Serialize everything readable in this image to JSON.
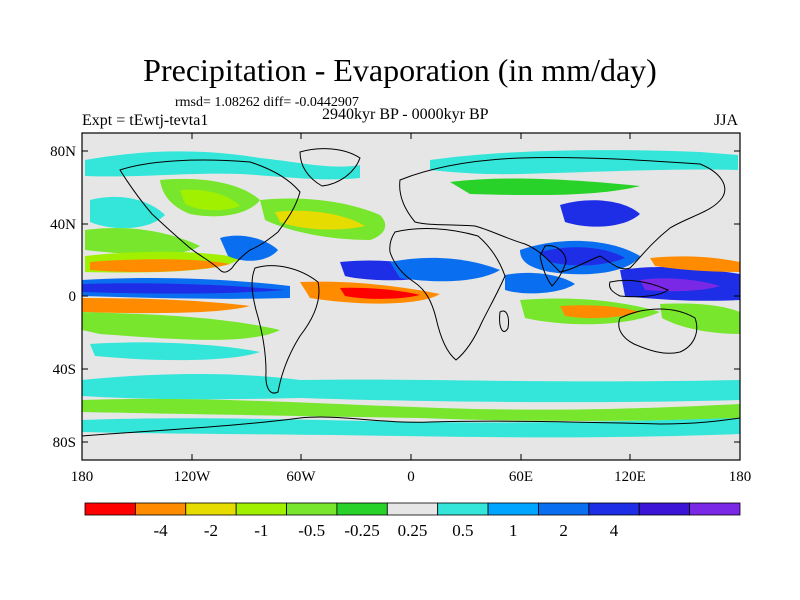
{
  "title": "Precipitation - Evaporation (in mm/day)",
  "stats": "rmsd= 1.08262 diff= -0.0442907",
  "experiment": "Expt = tEwtj-tevta1",
  "period": "2940kyr BP - 0000kyr BP",
  "season": "JJA",
  "y_ticks": [
    "80N",
    "40N",
    "0",
    "40S",
    "80S"
  ],
  "x_ticks": [
    "180",
    "120W",
    "60W",
    "0",
    "60E",
    "120E",
    "180"
  ],
  "colorbar": {
    "colors": [
      "#ff0000",
      "#ff8c00",
      "#e6dc00",
      "#a0f000",
      "#78e62d",
      "#28d228",
      "#e6e6e6",
      "#33e6d9",
      "#00a5ff",
      "#0a6ef0",
      "#1e2de6",
      "#3c14d7",
      "#7b28e6"
    ],
    "labels": [
      "-4",
      "-2",
      "-1",
      "-0.5",
      "-0.25",
      "0.25",
      "0.5",
      "1",
      "2",
      "4"
    ]
  },
  "palette": {
    "neutral": "#e6e6e6",
    "dry_strong": "#ff0000",
    "dry": "#ff8c00",
    "dry_mild": "#e6dc00",
    "yellow_green": "#a0f000",
    "green": "#78e62d",
    "bright_green": "#28d228",
    "cyan": "#33e6d9",
    "light_blue": "#00a5ff",
    "blue": "#0a6ef0",
    "dark_blue": "#1e2de6",
    "deep_blue": "#3c14d7",
    "purple": "#7b28e6"
  }
}
